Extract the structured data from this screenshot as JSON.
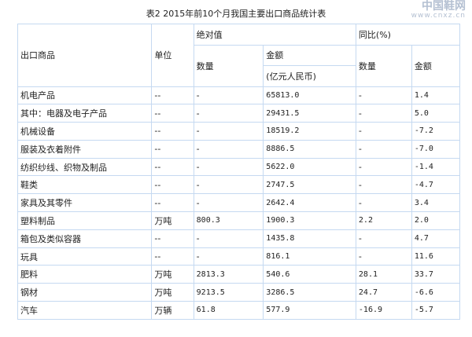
{
  "title": "表2 2015年前10个月我国主要出口商品统计表",
  "headers": {
    "product": "出口商品",
    "unit": "单位",
    "absolute": "绝对值",
    "yoy": "同比(%)",
    "quantity": "数量",
    "amount": "金额",
    "amount_unit": "(亿元人民币)",
    "yoy_quantity": "数量",
    "yoy_amount": "金额"
  },
  "rows": [
    {
      "product": "机电产品",
      "unit": "--",
      "qty": "-",
      "amount": "65813.0",
      "yoy_qty": "-",
      "yoy_amount": "1.4"
    },
    {
      "product": "其中：电器及电子产品",
      "unit": "--",
      "qty": "-",
      "amount": "29431.5",
      "yoy_qty": "-",
      "yoy_amount": "5.0"
    },
    {
      "product": "机械设备",
      "unit": "--",
      "qty": "-",
      "amount": "18519.2",
      "yoy_qty": "-",
      "yoy_amount": "-7.2"
    },
    {
      "product": "服装及衣着附件",
      "unit": "--",
      "qty": "-",
      "amount": "8886.5",
      "yoy_qty": "-",
      "yoy_amount": "-7.0"
    },
    {
      "product": "纺织纱线、织物及制品",
      "unit": "--",
      "qty": "-",
      "amount": "5622.0",
      "yoy_qty": "-",
      "yoy_amount": "-1.4"
    },
    {
      "product": "鞋类",
      "unit": "--",
      "qty": "-",
      "amount": "2747.5",
      "yoy_qty": "-",
      "yoy_amount": "-4.7"
    },
    {
      "product": "家具及其零件",
      "unit": "--",
      "qty": "-",
      "amount": "2642.4",
      "yoy_qty": "-",
      "yoy_amount": "3.4"
    },
    {
      "product": "塑料制品",
      "unit": "万吨",
      "qty": "800.3",
      "amount": "1900.3",
      "yoy_qty": "2.2",
      "yoy_amount": "2.0"
    },
    {
      "product": "箱包及类似容器",
      "unit": "--",
      "qty": "-",
      "amount": "1435.8",
      "yoy_qty": "-",
      "yoy_amount": "4.7"
    },
    {
      "product": "玩具",
      "unit": "--",
      "qty": "-",
      "amount": "816.1",
      "yoy_qty": "-",
      "yoy_amount": "11.6"
    },
    {
      "product": "肥料",
      "unit": "万吨",
      "qty": "2813.3",
      "amount": "540.6",
      "yoy_qty": "28.1",
      "yoy_amount": "33.7"
    },
    {
      "product": "钢材",
      "unit": "万吨",
      "qty": "9213.5",
      "amount": "3286.5",
      "yoy_qty": "24.7",
      "yoy_amount": "-6.6"
    },
    {
      "product": "汽车",
      "unit": "万辆",
      "qty": "61.8",
      "amount": "577.9",
      "yoy_qty": "-16.9",
      "yoy_amount": "-5.7"
    }
  ],
  "watermark": {
    "text": "中国鞋网",
    "url": "www.cnxz.cn"
  },
  "colors": {
    "border": "#c5d9f1"
  }
}
